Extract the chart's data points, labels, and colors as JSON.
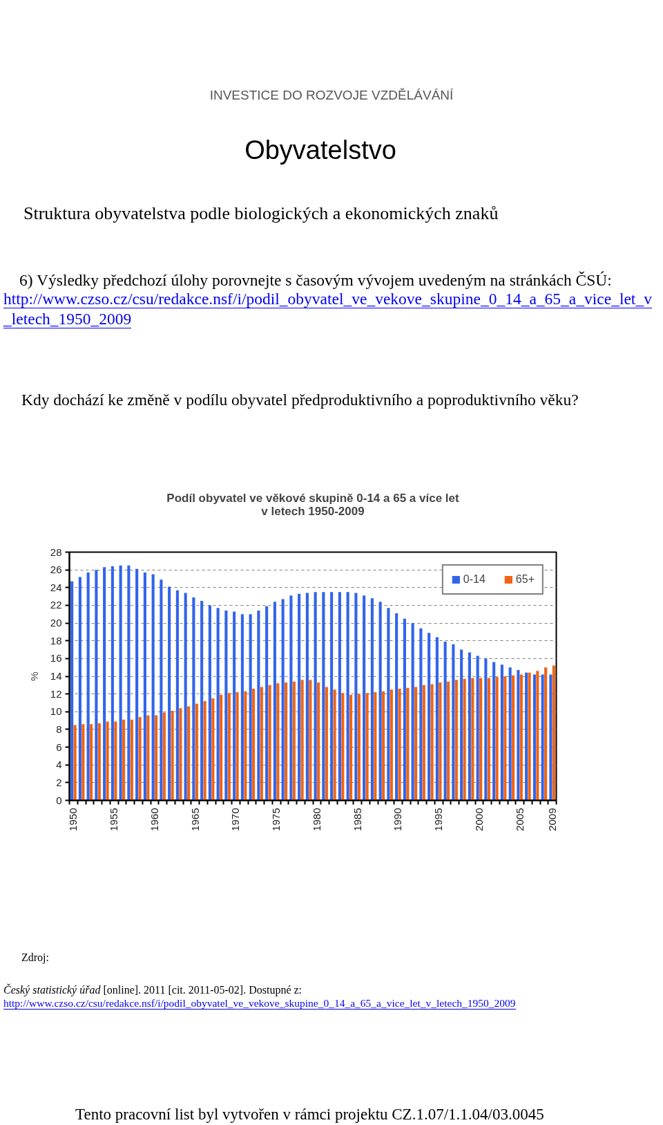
{
  "chart_data": {
    "type": "bar",
    "title": "Podíl obyvatel ve věkové skupině 0-14 a 65 a více let v letech 1950-2009",
    "ylabel": "%",
    "categories": [
      "1950",
      null,
      null,
      null,
      null,
      "1955",
      null,
      null,
      null,
      null,
      "1960",
      null,
      null,
      null,
      null,
      "1965",
      null,
      null,
      null,
      null,
      "1970",
      null,
      null,
      null,
      null,
      "1975",
      null,
      null,
      null,
      null,
      "1980",
      null,
      null,
      null,
      null,
      "1985",
      null,
      null,
      null,
      null,
      "1990",
      null,
      null,
      null,
      null,
      "1995",
      null,
      null,
      null,
      null,
      "2000",
      null,
      null,
      null,
      null,
      "2005",
      null,
      null,
      null,
      "2009"
    ],
    "series": [
      {
        "name": "0-14",
        "color": "#3264eb",
        "values": [
          24.7,
          25.2,
          25.7,
          26.0,
          26.3,
          26.4,
          26.5,
          26.5,
          26.1,
          25.7,
          25.5,
          24.9,
          24.1,
          23.7,
          23.4,
          22.9,
          22.5,
          22.0,
          21.7,
          21.4,
          21.3,
          21.0,
          21.0,
          21.4,
          21.9,
          22.4,
          22.7,
          23.1,
          23.3,
          23.4,
          23.5,
          23.5,
          23.5,
          23.5,
          23.5,
          23.4,
          23.1,
          22.8,
          22.4,
          21.7,
          21.1,
          20.5,
          20.0,
          19.4,
          18.9,
          18.4,
          17.9,
          17.6,
          17.0,
          16.7,
          16.3,
          16.0,
          15.6,
          15.3,
          15.0,
          14.7,
          14.4,
          14.2,
          14.2,
          14.2
        ]
      },
      {
        "name": "65+",
        "color": "#f06414",
        "values": [
          8.5,
          8.6,
          8.6,
          8.7,
          8.9,
          8.9,
          9.1,
          9.1,
          9.4,
          9.6,
          9.6,
          9.9,
          10.1,
          10.4,
          10.6,
          10.9,
          11.2,
          11.5,
          11.9,
          12.1,
          12.2,
          12.3,
          12.6,
          12.8,
          13.0,
          13.2,
          13.3,
          13.4,
          13.6,
          13.6,
          13.3,
          12.8,
          12.5,
          12.1,
          11.9,
          12.0,
          12.1,
          12.2,
          12.3,
          12.5,
          12.6,
          12.7,
          12.8,
          13.0,
          13.1,
          13.3,
          13.4,
          13.6,
          13.7,
          13.8,
          13.8,
          13.8,
          13.9,
          14.0,
          14.1,
          14.2,
          14.4,
          14.6,
          15.0,
          15.2
        ]
      }
    ],
    "ylim": [
      0,
      28
    ],
    "yticks": [
      0,
      2,
      4,
      6,
      8,
      10,
      12,
      14,
      16,
      18,
      20,
      22,
      24,
      26,
      28
    ],
    "grid": "y",
    "legend": "top right",
    "annotations": [
      "INVESTICE DO ROZVOJE VZDĚLÁVÁNÍ",
      "Obyvatelstvo",
      "Struktura obyvatelstva podle biologických a ekonomických znaků",
      "6) Výsledky předchozí úlohy porovnejte s časovým vývojem uvedeným na stránkách ČSÚ:",
      "http://www.czso.cz/csu/redakce.nsf/i/podil_obyvatel_ve_vekove_skupine_0_14_a_65_a_vice_let_v_letech_1950_2009",
      "Kdy dochází ke změně v podílu obyvatel předproduktivního a poproduktivního věku?",
      "Zdroj:",
      "Český statistický úřad",
      "[online]. 2011 [cit. 2011-05-02]. Dostupné z:",
      "http://www.czso.cz/csu/redakce.nsf/i/podil_obyvatel_ve_vekove_skupine_0_14_a_65_a_vice_let_v_letech_1950_2009",
      "Tento pracovní list byl vytvořen v rámci projektu CZ.1.07/1.1.04/03.0045"
    ]
  }
}
